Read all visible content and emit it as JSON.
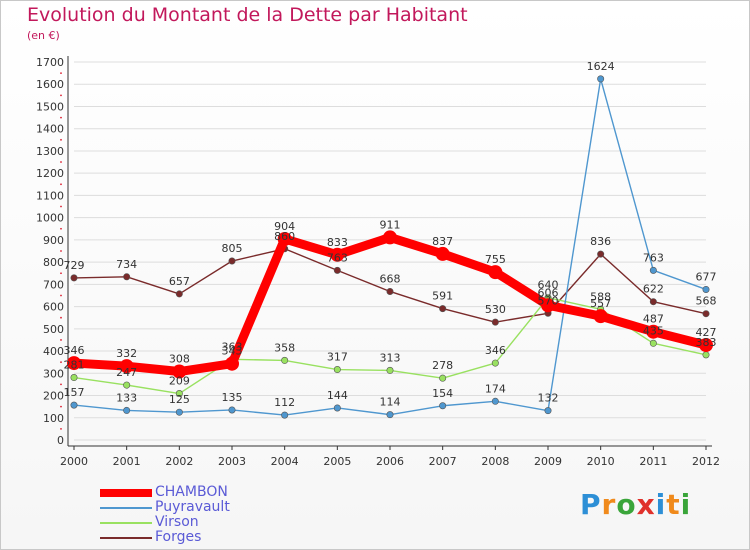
{
  "header": {
    "title": "Evolution du Montant de la Dette par Habitant",
    "subtitle": "(en €)"
  },
  "logo": {
    "text": "Proxiti"
  },
  "colors": {
    "CHAMBON": "#ff0000",
    "Puyravault": "#4f97cf",
    "Virson": "#99e160",
    "Forges": "#7a2b2b",
    "title": "#c2185b",
    "legend_text": "#5a5ad6",
    "grid": "#dddddd"
  },
  "chart_data": {
    "type": "line",
    "categories": [
      "2000",
      "2001",
      "2002",
      "2003",
      "2004",
      "2005",
      "2006",
      "2007",
      "2008",
      "2009",
      "2010",
      "2011",
      "2012"
    ],
    "ylim": [
      0,
      1700
    ],
    "yticks": [
      0,
      100,
      200,
      300,
      400,
      500,
      600,
      700,
      800,
      900,
      1000,
      1100,
      1200,
      1300,
      1400,
      1500,
      1600,
      1700
    ],
    "grid": "horizontal",
    "legend_position": "bottom-left",
    "series": [
      {
        "name": "Forges",
        "values": [
          729,
          734,
          657,
          805,
          860,
          763,
          668,
          591,
          530,
          570,
          836,
          622,
          568
        ]
      },
      {
        "name": "Virson",
        "values": [
          281,
          247,
          209,
          363,
          358,
          317,
          313,
          278,
          346,
          640,
          588,
          435,
          383
        ]
      },
      {
        "name": "Puyravault",
        "values": [
          157,
          133,
          125,
          135,
          112,
          144,
          114,
          154,
          174,
          132,
          1624,
          763,
          677
        ]
      },
      {
        "name": "CHAMBON",
        "values": [
          346,
          332,
          308,
          343,
          904,
          833,
          911,
          837,
          755,
          606,
          557,
          487,
          427
        ]
      }
    ]
  }
}
